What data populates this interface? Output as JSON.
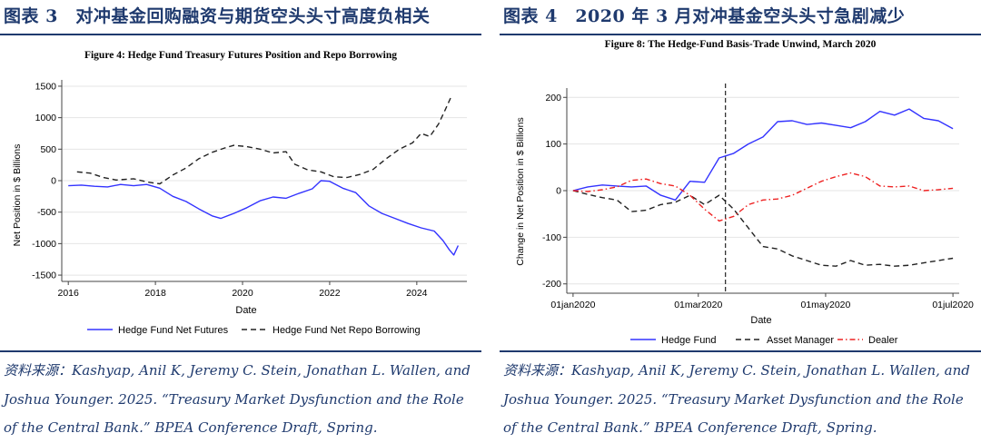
{
  "colors": {
    "heading": "#1f3a6e",
    "blue": "#3333ff",
    "black": "#222222",
    "red": "#ee2222",
    "rule": "#1f3a6e"
  },
  "left": {
    "heading": "图表 3　对冲基金回购融资与期货空头头寸高度负相关",
    "source": "资料来源：Kashyap, Anil K, Jeremy C. Stein, Jonathan L. Wallen, and Joshua Younger. 2025. “Treasury Market Dysfunction and the Role of the Central Bank.” BPEA Conference Draft, Spring."
  },
  "right": {
    "heading": "图表 4　2020 年 3 月对冲基金空头头寸急剧减少",
    "source": "资料来源：Kashyap, Anil K, Jeremy C. Stein, Jonathan L. Wallen, and Joshua Younger. 2025. “Treasury Market Dysfunction and the Role of the Central Bank.” BPEA Conference Draft, Spring."
  },
  "chart_data": [
    {
      "type": "line",
      "title": "Figure 4: Hedge Fund Treasury Futures Position and Repo Borrowing",
      "xlabel": "Date",
      "ylabel": "Net Position in $ Billions",
      "xlim": [
        2015.85,
        2025.15
      ],
      "ylim": [
        -1600,
        1600
      ],
      "xticks": [
        2016,
        2018,
        2020,
        2022,
        2024
      ],
      "xtick_labels": [
        "2016",
        "2018",
        "2020",
        "2022",
        "2024"
      ],
      "yticks": [
        -1500,
        -1000,
        -500,
        0,
        500,
        1000,
        1500
      ],
      "ytick_labels": [
        "-1500",
        "-1000",
        "-500",
        "0",
        "500",
        "1000",
        "1500"
      ],
      "grid": true,
      "legend_position": "bottom",
      "series": [
        {
          "name": "Hedge Fund Net Futures",
          "color": "#3333ff",
          "dash": "solid",
          "x": [
            2016.0,
            2016.3,
            2016.6,
            2016.9,
            2017.2,
            2017.5,
            2017.8,
            2018.1,
            2018.4,
            2018.7,
            2019.0,
            2019.3,
            2019.5,
            2019.8,
            2020.1,
            2020.4,
            2020.7,
            2021.0,
            2021.3,
            2021.6,
            2021.8,
            2022.0,
            2022.3,
            2022.6,
            2022.9,
            2023.2,
            2023.5,
            2023.8,
            2024.1,
            2024.4,
            2024.6,
            2024.75,
            2024.85,
            2024.95
          ],
          "y": [
            -80,
            -70,
            -90,
            -100,
            -60,
            -80,
            -60,
            -120,
            -250,
            -330,
            -450,
            -560,
            -600,
            -520,
            -430,
            -320,
            -260,
            -280,
            -200,
            -130,
            0,
            -10,
            -120,
            -190,
            -400,
            -520,
            -600,
            -680,
            -750,
            -800,
            -950,
            -1100,
            -1180,
            -1030
          ]
        },
        {
          "name": "Hedge Fund Net Repo Borrowing",
          "color": "#222222",
          "dash": "dashed",
          "x": [
            2016.2,
            2016.5,
            2016.8,
            2017.1,
            2017.5,
            2017.8,
            2018.1,
            2018.4,
            2018.7,
            2019.0,
            2019.3,
            2019.6,
            2019.8,
            2020.1,
            2020.4,
            2020.7,
            2021.0,
            2021.2,
            2021.5,
            2021.8,
            2022.1,
            2022.4,
            2022.7,
            2023.0,
            2023.3,
            2023.6,
            2023.9,
            2024.1,
            2024.3,
            2024.5,
            2024.65,
            2024.78
          ],
          "y": [
            140,
            120,
            50,
            10,
            30,
            -20,
            -50,
            90,
            200,
            350,
            450,
            520,
            560,
            540,
            500,
            440,
            460,
            260,
            170,
            140,
            60,
            50,
            100,
            180,
            350,
            500,
            600,
            750,
            700,
            900,
            1120,
            1320
          ]
        }
      ]
    },
    {
      "type": "line",
      "title": "Figure 8: The Hedge-Fund Basis-Trade Unwind, March 2020",
      "xlabel": "Date",
      "ylabel": "Change in Net Position in $ Billions",
      "xlim": [
        -3,
        185
      ],
      "ylim": [
        -220,
        220
      ],
      "xticks": [
        0,
        60,
        121,
        182
      ],
      "xtick_labels": [
        "01jan2020",
        "01mar2020",
        "01may2020",
        "01jul2020"
      ],
      "yticks": [
        -200,
        -100,
        0,
        100,
        200
      ],
      "ytick_labels": [
        "-200",
        "-100",
        "0",
        "100",
        "200"
      ],
      "grid": true,
      "vline_x": 73,
      "legend_position": "bottom",
      "series": [
        {
          "name": "Hedge Fund",
          "color": "#3333ff",
          "dash": "solid",
          "x": [
            0,
            7,
            14,
            21,
            28,
            35,
            42,
            49,
            56,
            63,
            70,
            77,
            84,
            91,
            98,
            105,
            112,
            119,
            126,
            133,
            140,
            147,
            154,
            161,
            168,
            175,
            182
          ],
          "y": [
            0,
            8,
            12,
            10,
            8,
            10,
            -10,
            -20,
            20,
            18,
            70,
            80,
            100,
            115,
            148,
            150,
            142,
            145,
            140,
            135,
            148,
            170,
            162,
            175,
            155,
            150,
            133
          ]
        },
        {
          "name": "Asset Manager",
          "color": "#222222",
          "dash": "dashed",
          "x": [
            0,
            7,
            14,
            21,
            28,
            35,
            42,
            49,
            56,
            63,
            70,
            77,
            84,
            91,
            98,
            105,
            112,
            119,
            126,
            133,
            140,
            147,
            154,
            161,
            168,
            175,
            182
          ],
          "y": [
            0,
            -8,
            -15,
            -20,
            -45,
            -42,
            -30,
            -25,
            -10,
            -30,
            -10,
            -40,
            -80,
            -120,
            -125,
            -140,
            -150,
            -160,
            -162,
            -150,
            -160,
            -158,
            -162,
            -160,
            -155,
            -150,
            -145
          ]
        },
        {
          "name": "Dealer",
          "color": "#ee2222",
          "dash": "dashdot",
          "x": [
            0,
            7,
            14,
            21,
            28,
            35,
            42,
            49,
            56,
            63,
            70,
            77,
            84,
            91,
            98,
            105,
            112,
            119,
            126,
            133,
            140,
            147,
            154,
            161,
            168,
            175,
            182
          ],
          "y": [
            0,
            -2,
            2,
            8,
            22,
            25,
            15,
            10,
            -10,
            -40,
            -65,
            -55,
            -30,
            -20,
            -18,
            -10,
            5,
            20,
            30,
            38,
            30,
            10,
            8,
            10,
            0,
            2,
            5
          ]
        }
      ]
    }
  ]
}
